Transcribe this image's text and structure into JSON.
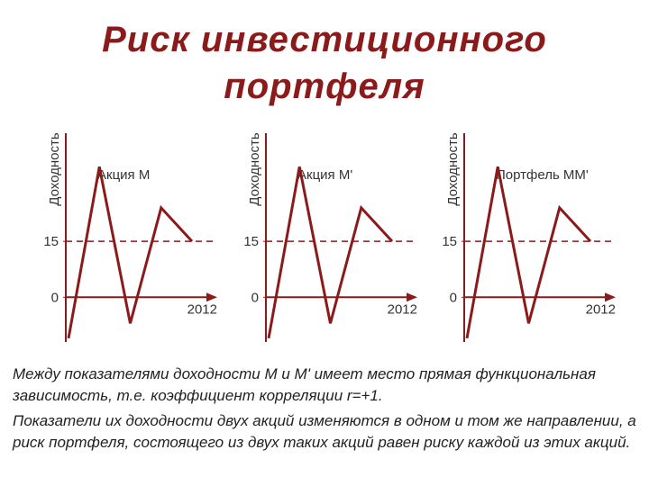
{
  "title": "Риск инвестиционного портфеля",
  "chart_data": [
    {
      "type": "line",
      "ylabel": "Доходность",
      "xlabel": "2012",
      "categories": [
        null,
        null,
        null,
        null,
        null
      ],
      "series": [
        {
          "name": "Акция М",
          "color": "#8b1a1a",
          "values": [
            -11,
            35,
            -7,
            24,
            15
          ]
        }
      ],
      "ylim": [
        -12,
        44
      ],
      "yticks": [
        0,
        15
      ],
      "reference_line": 15
    },
    {
      "type": "line",
      "ylabel": "Доходность",
      "xlabel": "2012",
      "categories": [
        null,
        null,
        null,
        null,
        null
      ],
      "series": [
        {
          "name": "Акция М'",
          "color": "#8b1a1a",
          "values": [
            -11,
            35,
            -7,
            24,
            15
          ]
        }
      ],
      "ylim": [
        -12,
        44
      ],
      "yticks": [
        0,
        15
      ],
      "reference_line": 15
    },
    {
      "type": "line",
      "ylabel": "Доходность",
      "xlabel": "2012",
      "categories": [
        null,
        null,
        null,
        null,
        null
      ],
      "series": [
        {
          "name": "Портфель ММ'",
          "color": "#8b1a1a",
          "values": [
            -11,
            35,
            -7,
            24,
            15
          ]
        }
      ],
      "ylim": [
        -12,
        44
      ],
      "yticks": [
        0,
        15
      ],
      "reference_line": 15
    }
  ],
  "text": [
    "Между показателями доходности М и М' имеет место прямая функциональная зависимость, т.е. коэффициент корреляции r=+1.",
    "Показатели их доходности двух акций изменяются в одном и том же направлении, а риск портфеля, состоящего из двух таких акций равен риску каждой из этих акций."
  ]
}
